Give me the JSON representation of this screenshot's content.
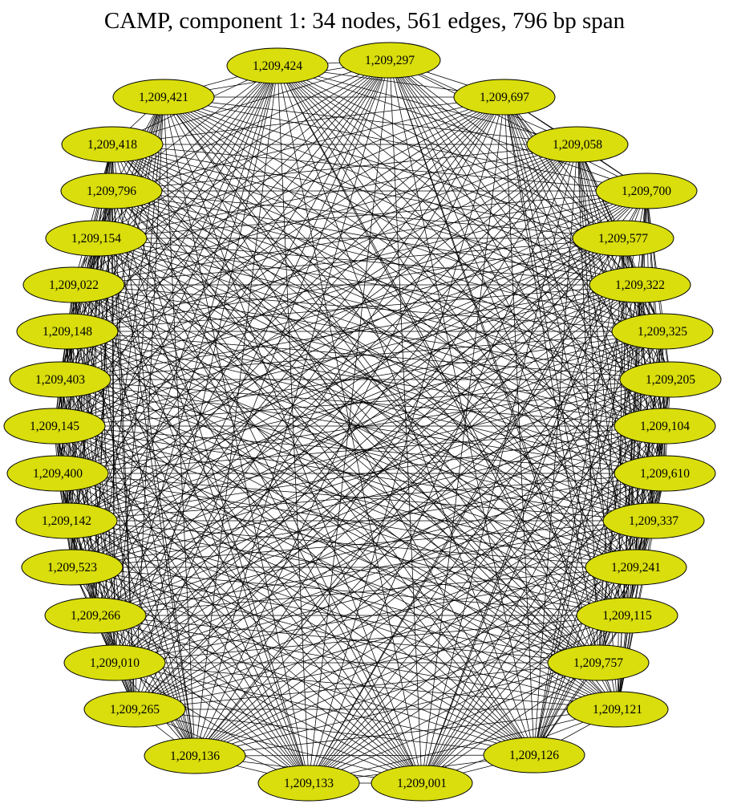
{
  "title": "CAMP, component 1: 34 nodes, 561 edges, 796 bp span",
  "colors": {
    "node_fill": "#d9de0c",
    "node_stroke": "#000000",
    "edge": "#000000"
  },
  "graph": {
    "edges": "complete",
    "nodes": [
      "1,209,424",
      "1,209,297",
      "1,209,697",
      "1,209,058",
      "1,209,700",
      "1,209,577",
      "1,209,322",
      "1,209,325",
      "1,209,205",
      "1,209,104",
      "1,209,610",
      "1,209,337",
      "1,209,241",
      "1,209,115",
      "1,209,757",
      "1,209,121",
      "1,209,126",
      "1,209,001",
      "1,209,133",
      "1,209,136",
      "1,209,265",
      "1,209,010",
      "1,209,266",
      "1,209,523",
      "1,209,142",
      "1,209,400",
      "1,209,145",
      "1,209,403",
      "1,209,148",
      "1,209,022",
      "1,209,154",
      "1,209,796",
      "1,209,418",
      "1,209,421"
    ]
  }
}
